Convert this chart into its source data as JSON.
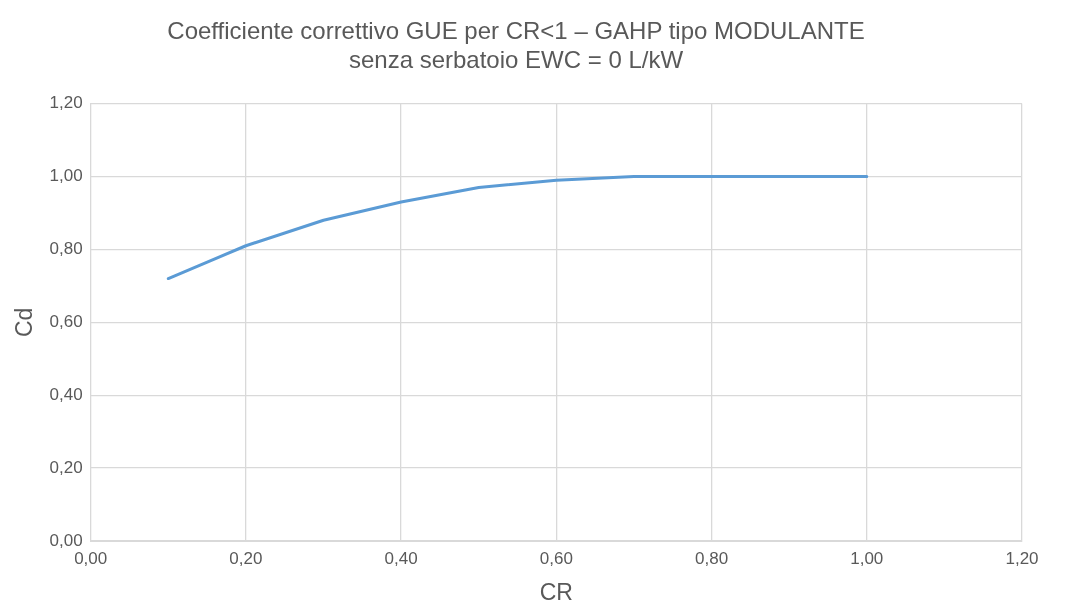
{
  "chart_data": {
    "type": "line",
    "title": "Coefficiente correttivo GUE per CR<1 – GAHP tipo MODULANTE",
    "subtitle": "senza serbatoio EWC = 0 L/kW",
    "xlabel": "CR",
    "ylabel": "Cd",
    "x": [
      0.1,
      0.2,
      0.3,
      0.4,
      0.5,
      0.6,
      0.7,
      0.8,
      0.9,
      1.0
    ],
    "series": [
      {
        "color": "#5b9bd5",
        "values": [
          0.72,
          0.81,
          0.88,
          0.93,
          0.97,
          0.99,
          1.0,
          1.0,
          1.0,
          1.0
        ]
      }
    ],
    "xlim": [
      0,
      1.2
    ],
    "xticks": [
      {
        "value": 0,
        "label": "0,00"
      },
      {
        "value": 0.2,
        "label": "0,20"
      },
      {
        "value": 0.4,
        "label": "0,40"
      },
      {
        "value": 0.6,
        "label": "0,60"
      },
      {
        "value": 0.8,
        "label": "0,80"
      },
      {
        "value": 1,
        "label": "1,00"
      },
      {
        "value": 1.2,
        "label": "1,20"
      }
    ],
    "ylim": [
      0,
      1.2
    ],
    "yticks": [
      {
        "value": 0,
        "label": "0,00"
      },
      {
        "value": 0.2,
        "label": "0,20"
      },
      {
        "value": 0.4,
        "label": "0,40"
      },
      {
        "value": 0.6,
        "label": "0,60"
      },
      {
        "value": 0.8,
        "label": "0,80"
      },
      {
        "value": 1,
        "label": "1,00"
      },
      {
        "value": 1.2,
        "label": "1,20"
      }
    ],
    "grid": true,
    "legend": false,
    "marker": "none",
    "line_style": "solid"
  }
}
